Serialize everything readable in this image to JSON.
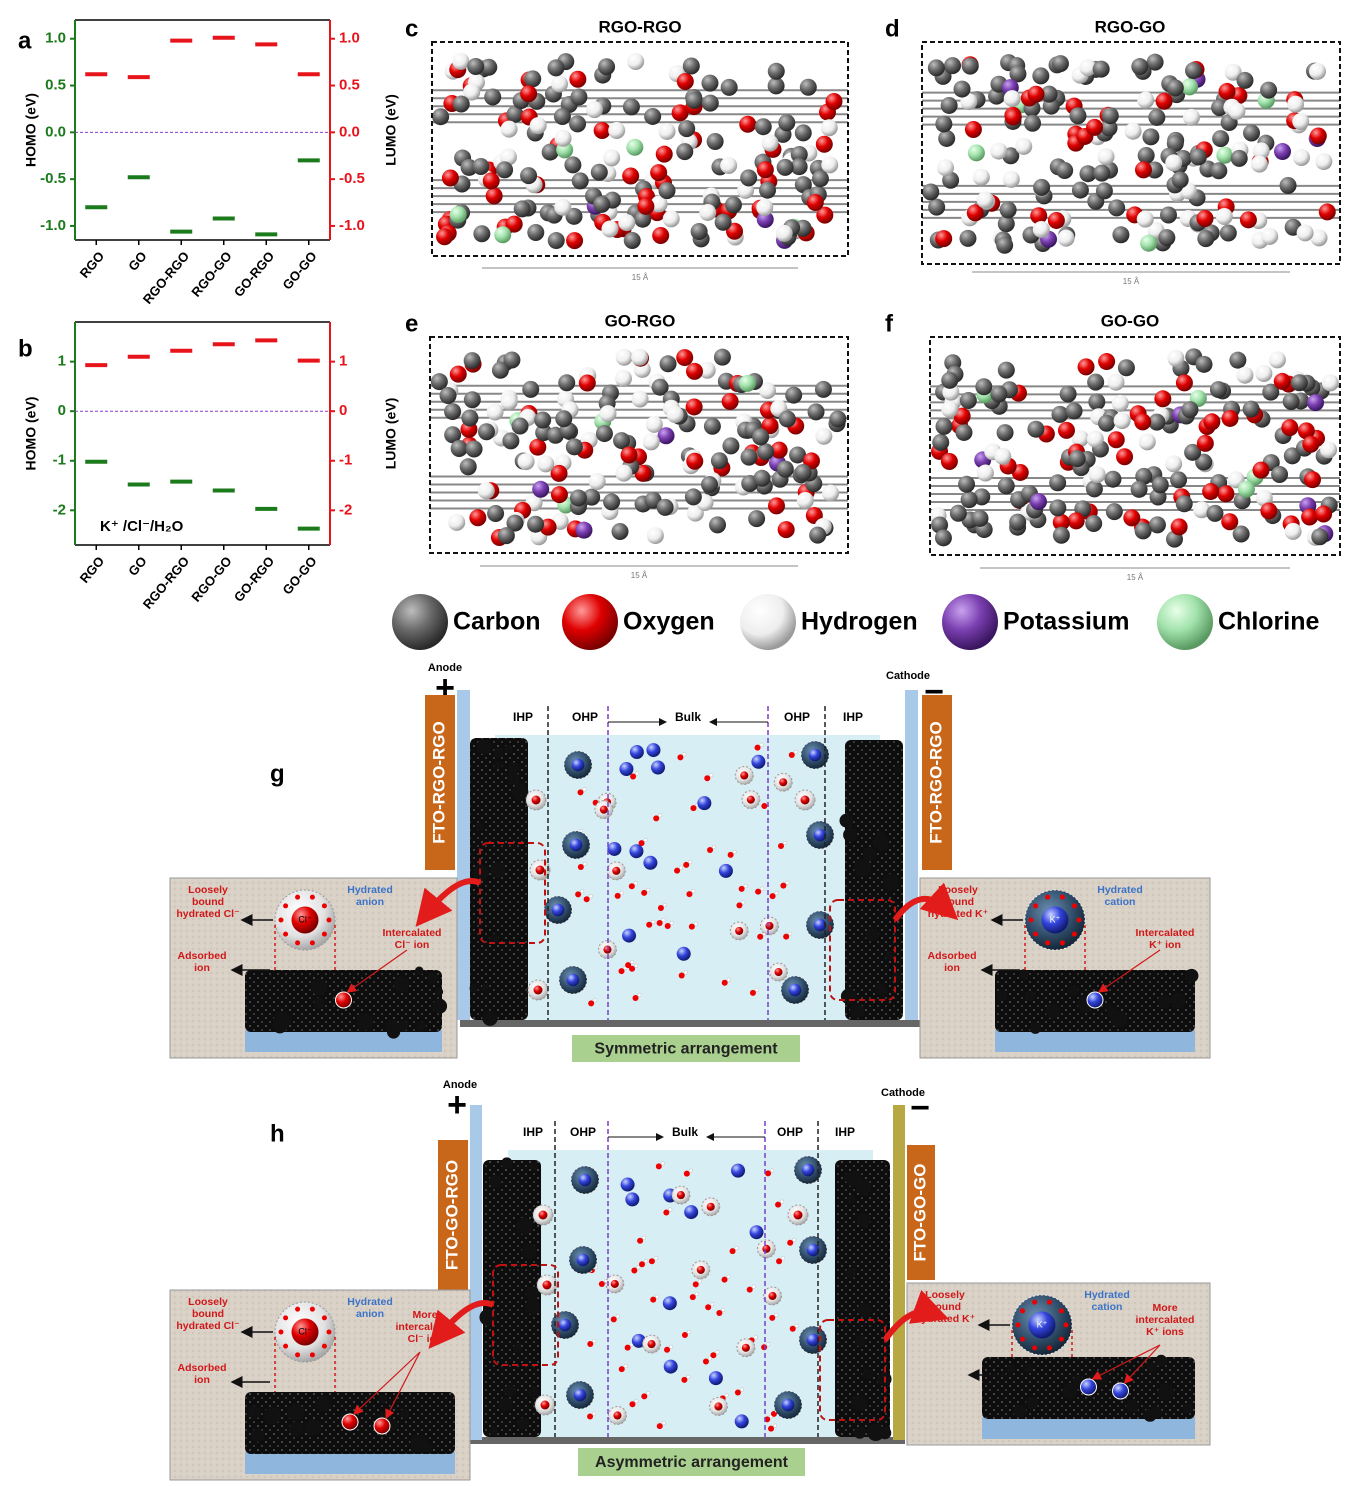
{
  "chart_data": [
    {
      "type": "scatter",
      "panel_label": "a",
      "categories": [
        "RGO",
        "GO",
        "RGO-RGO",
        "RGO-GO",
        "GO-RGO",
        "GO-GO"
      ],
      "ylabel": "HOMO (eV)",
      "y2label": "LUMO (eV)",
      "ylim": [
        -1.15,
        1.2
      ],
      "y2lim": [
        -1.15,
        1.2
      ],
      "yticks": [
        {
          "value": -1,
          "label": "-1.0"
        },
        {
          "value": -0.5,
          "label": "-0.5"
        },
        {
          "value": 0,
          "label": "0.0"
        },
        {
          "value": 0.5,
          "label": "0.5"
        },
        {
          "value": 1,
          "label": "1.0"
        }
      ],
      "y2ticks": [
        {
          "value": -1,
          "label": "-1.0"
        },
        {
          "value": -0.5,
          "label": "-0.5"
        },
        {
          "value": 0,
          "label": "0.0"
        },
        {
          "value": 0.5,
          "label": "0.5"
        },
        {
          "value": 1,
          "label": "1.0"
        }
      ],
      "hline": 0,
      "series": [
        {
          "color": "#1b7a1b",
          "values": [
            -0.8,
            -0.48,
            -1.06,
            -0.92,
            -1.09,
            -0.3
          ]
        },
        {
          "color": "#e8141c",
          "axis": "y2",
          "values": [
            0.62,
            0.59,
            0.98,
            1.01,
            0.94,
            0.62
          ]
        }
      ]
    },
    {
      "type": "scatter",
      "panel_label": "b",
      "categories": [
        "RGO",
        "GO",
        "RGO-RGO",
        "RGO-GO",
        "GO-RGO",
        "GO-GO"
      ],
      "ylabel": "HOMO (eV)",
      "y2label": "LUMO (eV)",
      "annotation": "K⁺ /Cl⁻/H₂O",
      "ylim": [
        -2.7,
        1.8
      ],
      "y2lim": [
        -2.7,
        1.8
      ],
      "yticks": [
        -2,
        -1,
        0,
        1
      ],
      "y2ticks": [
        -2,
        -1,
        0,
        1
      ],
      "hline": 0,
      "series": [
        {
          "color": "#1b7a1b",
          "values": [
            -1.02,
            -1.48,
            -1.42,
            -1.6,
            -1.97,
            -2.37
          ]
        },
        {
          "color": "#e8141c",
          "axis": "y2",
          "values": [
            0.93,
            1.1,
            1.22,
            1.35,
            1.43,
            1.02
          ]
        }
      ]
    }
  ],
  "panels": [
    {
      "label": "c",
      "title": "RGO-RGO",
      "scale": "15 Å"
    },
    {
      "label": "d",
      "title": "RGO-GO",
      "scale": "15 Å"
    },
    {
      "label": "e",
      "title": "GO-RGO",
      "scale": "15 Å"
    },
    {
      "label": "f",
      "title": "GO-GO",
      "scale": "15 Å"
    }
  ],
  "legend": [
    "Carbon",
    "Oxygen",
    "Hydrogen",
    "Potassium",
    "Chlorine"
  ],
  "schematics": [
    {
      "label": "g",
      "anode": "Anode",
      "cathode": "Cathode",
      "plus": "+",
      "minus": "−",
      "regions": [
        "IHP",
        "OHP",
        "Bulk",
        "OHP",
        "IHP"
      ],
      "left_electrode": "FTO-RGO-RGO",
      "right_electrode": "FTO-RGO-RGO",
      "caption": "Symmetric arrangement",
      "left_inset": {
        "loosely": [
          "Loosely",
          "bound",
          "hydrated Cl⁻"
        ],
        "hydrated": [
          "Hydrated",
          "anion"
        ],
        "adsorbed": [
          "Adsorbed",
          "ion"
        ],
        "intercalated": [
          "Intercalated",
          "Cl⁻ ion"
        ],
        "ion": "Cl⁻"
      },
      "right_inset": {
        "loosely": [
          "Loosely",
          "bound",
          "hydrated K⁺"
        ],
        "hydrated": [
          "Hydrated",
          "cation"
        ],
        "adsorbed": [
          "Adsorbed",
          "ion"
        ],
        "intercalated": [
          "Intercalated",
          "K⁺ ion"
        ],
        "ion": "K⁺"
      }
    },
    {
      "label": "h",
      "anode": "Anode",
      "cathode": "Cathode",
      "plus": "+",
      "minus": "−",
      "regions": [
        "IHP",
        "OHP",
        "Bulk",
        "OHP",
        "IHP"
      ],
      "left_electrode": "FTO-GO-RGO",
      "right_electrode": "FTO-GO-GO",
      "caption": "Asymmetric arrangement",
      "left_inset": {
        "loosely": [
          "Loosely",
          "bound",
          "hydrated Cl⁻"
        ],
        "hydrated": [
          "Hydrated",
          "anion"
        ],
        "adsorbed": [
          "Adsorbed",
          "ion"
        ],
        "intercalated": [
          "More",
          "intercalated",
          "Cl⁻ ion"
        ],
        "ion": "Cl⁻"
      },
      "right_inset": {
        "loosely": [
          "Loosely",
          "bound",
          "hydrated K⁺"
        ],
        "hydrated": [
          "Hydrated",
          "cation"
        ],
        "intercalated": [
          "More",
          "intercalated",
          "K⁺ ions"
        ],
        "ion": "K⁺"
      }
    }
  ]
}
